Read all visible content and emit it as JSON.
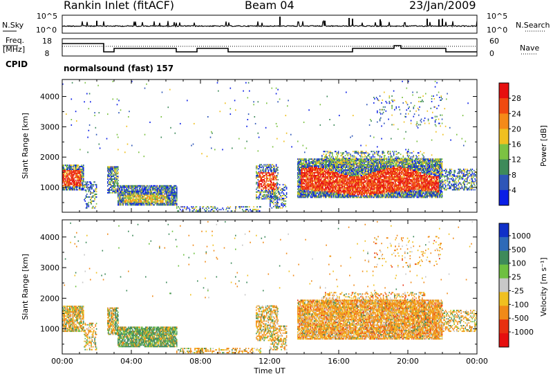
{
  "header": {
    "station": "Rankin Inlet (fitACF)",
    "beam": "Beam 04",
    "date": "23/Jan/2009"
  },
  "top_panels": {
    "nsky_label": "N.Sky",
    "nsky_ticks": [
      "10^5",
      "10^0"
    ],
    "nsearch_label": "N.Search",
    "nsearch_ticks": [
      "10^5",
      "10^0"
    ],
    "freq_label": "Freq.",
    "freq_unit": "[MHz]",
    "freq_ticks": [
      "18",
      "8"
    ],
    "nave_label": "Nave",
    "nave_ticks": [
      "60",
      "0"
    ],
    "cpid_label": "CPID",
    "cpid_value": "normalsound (fast) 157"
  },
  "chart_data": [
    {
      "type": "heatmap",
      "name": "power-panel",
      "ylabel": "Slant Range [km]",
      "xlabel": "",
      "xlim": [
        0,
        24
      ],
      "ylim": [
        180,
        4560
      ],
      "yticks": [
        1000,
        2000,
        3000,
        4000
      ],
      "xtick_labels": [
        "00:00",
        "04:00",
        "08:00",
        "12:00",
        "16:00",
        "20:00",
        "00:00"
      ],
      "colorbar_label": "Power [dB]",
      "colorbar_ticks": [
        "4",
        "8",
        "12",
        "16",
        "20",
        "24",
        "28"
      ],
      "colors": [
        "#0a1ee6",
        "#2e56b8",
        "#3e8a5a",
        "#7cc243",
        "#f0c020",
        "#f58a18",
        "#f04a10",
        "#e60f0f"
      ]
    },
    {
      "type": "heatmap",
      "name": "velocity-panel",
      "ylabel": "Slant Range [km]",
      "xlabel": "Time UT",
      "xlim": [
        0,
        24
      ],
      "ylim": [
        180,
        4560
      ],
      "yticks": [
        1000,
        2000,
        3000,
        4000
      ],
      "xtick_labels": [
        "00:00",
        "04:00",
        "08:00",
        "12:00",
        "16:00",
        "20:00",
        "00:00"
      ],
      "colorbar_label": "Velocity [m s⁻¹]",
      "colorbar_ticks": [
        "1000",
        "500",
        "100",
        "25",
        "-25",
        "-100",
        "-500",
        "-1000"
      ],
      "colors": [
        "#1030c8",
        "#2e6ab8",
        "#3e8a5a",
        "#6ec040",
        "#c8c8c8",
        "#f0c020",
        "#f08a18",
        "#e83010",
        "#e60f0f"
      ]
    }
  ]
}
